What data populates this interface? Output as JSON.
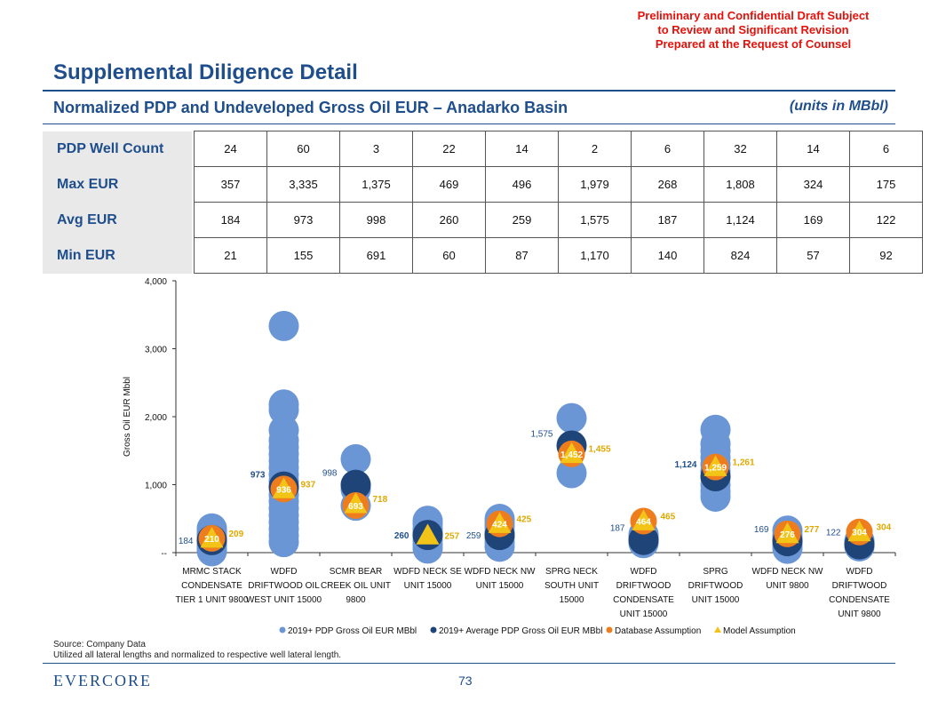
{
  "disclaimer": [
    "Preliminary and Confidential Draft Subject",
    "to Review and Significant Revision",
    "Prepared at the Request of Counsel"
  ],
  "title": "Supplemental Diligence Detail",
  "subtitle": "Normalized PDP and Undeveloped Gross Oil EUR – Anadarko Basin",
  "units": "(units in MBbl)",
  "stats_table": [
    {
      "label": "PDP Well Count",
      "values": [
        "24",
        "60",
        "3",
        "22",
        "14",
        "2",
        "6",
        "32",
        "14",
        "6"
      ]
    },
    {
      "label": "Max EUR",
      "values": [
        "357",
        "3,335",
        "1,375",
        "469",
        "496",
        "1,979",
        "268",
        "1,808",
        "324",
        "175"
      ]
    },
    {
      "label": "Avg EUR",
      "values": [
        "184",
        "973",
        "998",
        "260",
        "259",
        "1,575",
        "187",
        "1,124",
        "169",
        "122"
      ]
    },
    {
      "label": "Min EUR",
      "values": [
        "21",
        "155",
        "691",
        "60",
        "87",
        "1,170",
        "140",
        "824",
        "57",
        "92"
      ]
    }
  ],
  "chart_data": {
    "type": "scatter",
    "ylabel": "Gross Oil EUR Mbbl",
    "ylim": [
      0,
      4000
    ],
    "yticks": [
      0,
      1000,
      2000,
      3000,
      4000
    ],
    "ytick_labels": [
      "--",
      "1,000",
      "2,000",
      "3,000",
      "4,000"
    ],
    "categories": [
      [
        "MRMC STACK",
        "CONDENSATE",
        "TIER 1 UNIT 9800"
      ],
      [
        "WDFD",
        "DRIFTWOOD OIL",
        "WEST UNIT 15000"
      ],
      [
        "SCMR BEAR",
        "CREEK OIL UNIT",
        "9800"
      ],
      [
        "WDFD NECK SE",
        "UNIT 15000"
      ],
      [
        "WDFD NECK NW",
        "UNIT 15000"
      ],
      [
        "SPRG NECK",
        "SOUTH UNIT",
        "15000"
      ],
      [
        "WDFD",
        "DRIFTWOOD",
        "CONDENSATE",
        "UNIT 15000"
      ],
      [
        "SPRG",
        "DRIFTWOOD",
        "UNIT 15000"
      ],
      [
        "WDFD NECK NW",
        "UNIT 9800"
      ],
      [
        "WDFD",
        "DRIFTWOOD",
        "CONDENSATE",
        "UNIT 9800"
      ]
    ],
    "series": [
      {
        "name": "2019+ PDP Gross Oil EUR MBbl",
        "color": "#6b96d6",
        "marker": "circle",
        "values": [
          [
            21,
            60,
            110,
            150,
            184,
            230,
            280,
            320,
            357
          ],
          [
            155,
            250,
            350,
            450,
            550,
            650,
            750,
            850,
            950,
            1050,
            1150,
            1250,
            1350,
            1450,
            1550,
            1650,
            1800,
            2100,
            2180,
            3335
          ],
          [
            691,
            930,
            1375
          ],
          [
            60,
            120,
            180,
            240,
            300,
            350,
            420,
            469
          ],
          [
            87,
            150,
            220,
            300,
            380,
            440,
            496
          ],
          [
            1170,
            1979
          ],
          [
            140,
            170,
            200,
            230,
            268
          ],
          [
            824,
            900,
            1000,
            1100,
            1200,
            1300,
            1400,
            1500,
            1600,
            1808
          ],
          [
            57,
            100,
            150,
            200,
            250,
            324
          ],
          [
            92,
            110,
            130,
            150,
            175
          ]
        ]
      },
      {
        "name": "2019+ Average PDP Gross Oil EUR MBbl",
        "color": "#1f4478",
        "marker": "circle",
        "values": [
          184,
          973,
          998,
          260,
          259,
          1575,
          187,
          1124,
          169,
          122
        ],
        "labels": [
          "184",
          "973",
          "998",
          "260",
          "259",
          "1,575",
          "187",
          "1,124",
          "169",
          "122"
        ]
      },
      {
        "name": "Database Assumption",
        "color": "#ee7d1e",
        "marker": "circle",
        "values": [
          210,
          936,
          693,
          null,
          424,
          1452,
          464,
          1259,
          276,
          304
        ],
        "labels": [
          "210",
          "936",
          "693",
          "",
          "424",
          "1,452",
          "464",
          "1,259",
          "276",
          "304"
        ]
      },
      {
        "name": "Model Assumption",
        "color": "#f2c417",
        "marker": "triangle",
        "values": [
          209,
          937,
          718,
          257,
          425,
          1455,
          465,
          1261,
          277,
          304
        ],
        "labels": [
          "209",
          "937",
          "718",
          "257",
          "425",
          "1,455",
          "465",
          "1,261",
          "277",
          "304"
        ]
      }
    ]
  },
  "footer": {
    "source": "Source: Company Data",
    "note": "Utilized all lateral lengths and normalized to respective well lateral length.",
    "logo": "EVERCORE",
    "page": "73"
  }
}
